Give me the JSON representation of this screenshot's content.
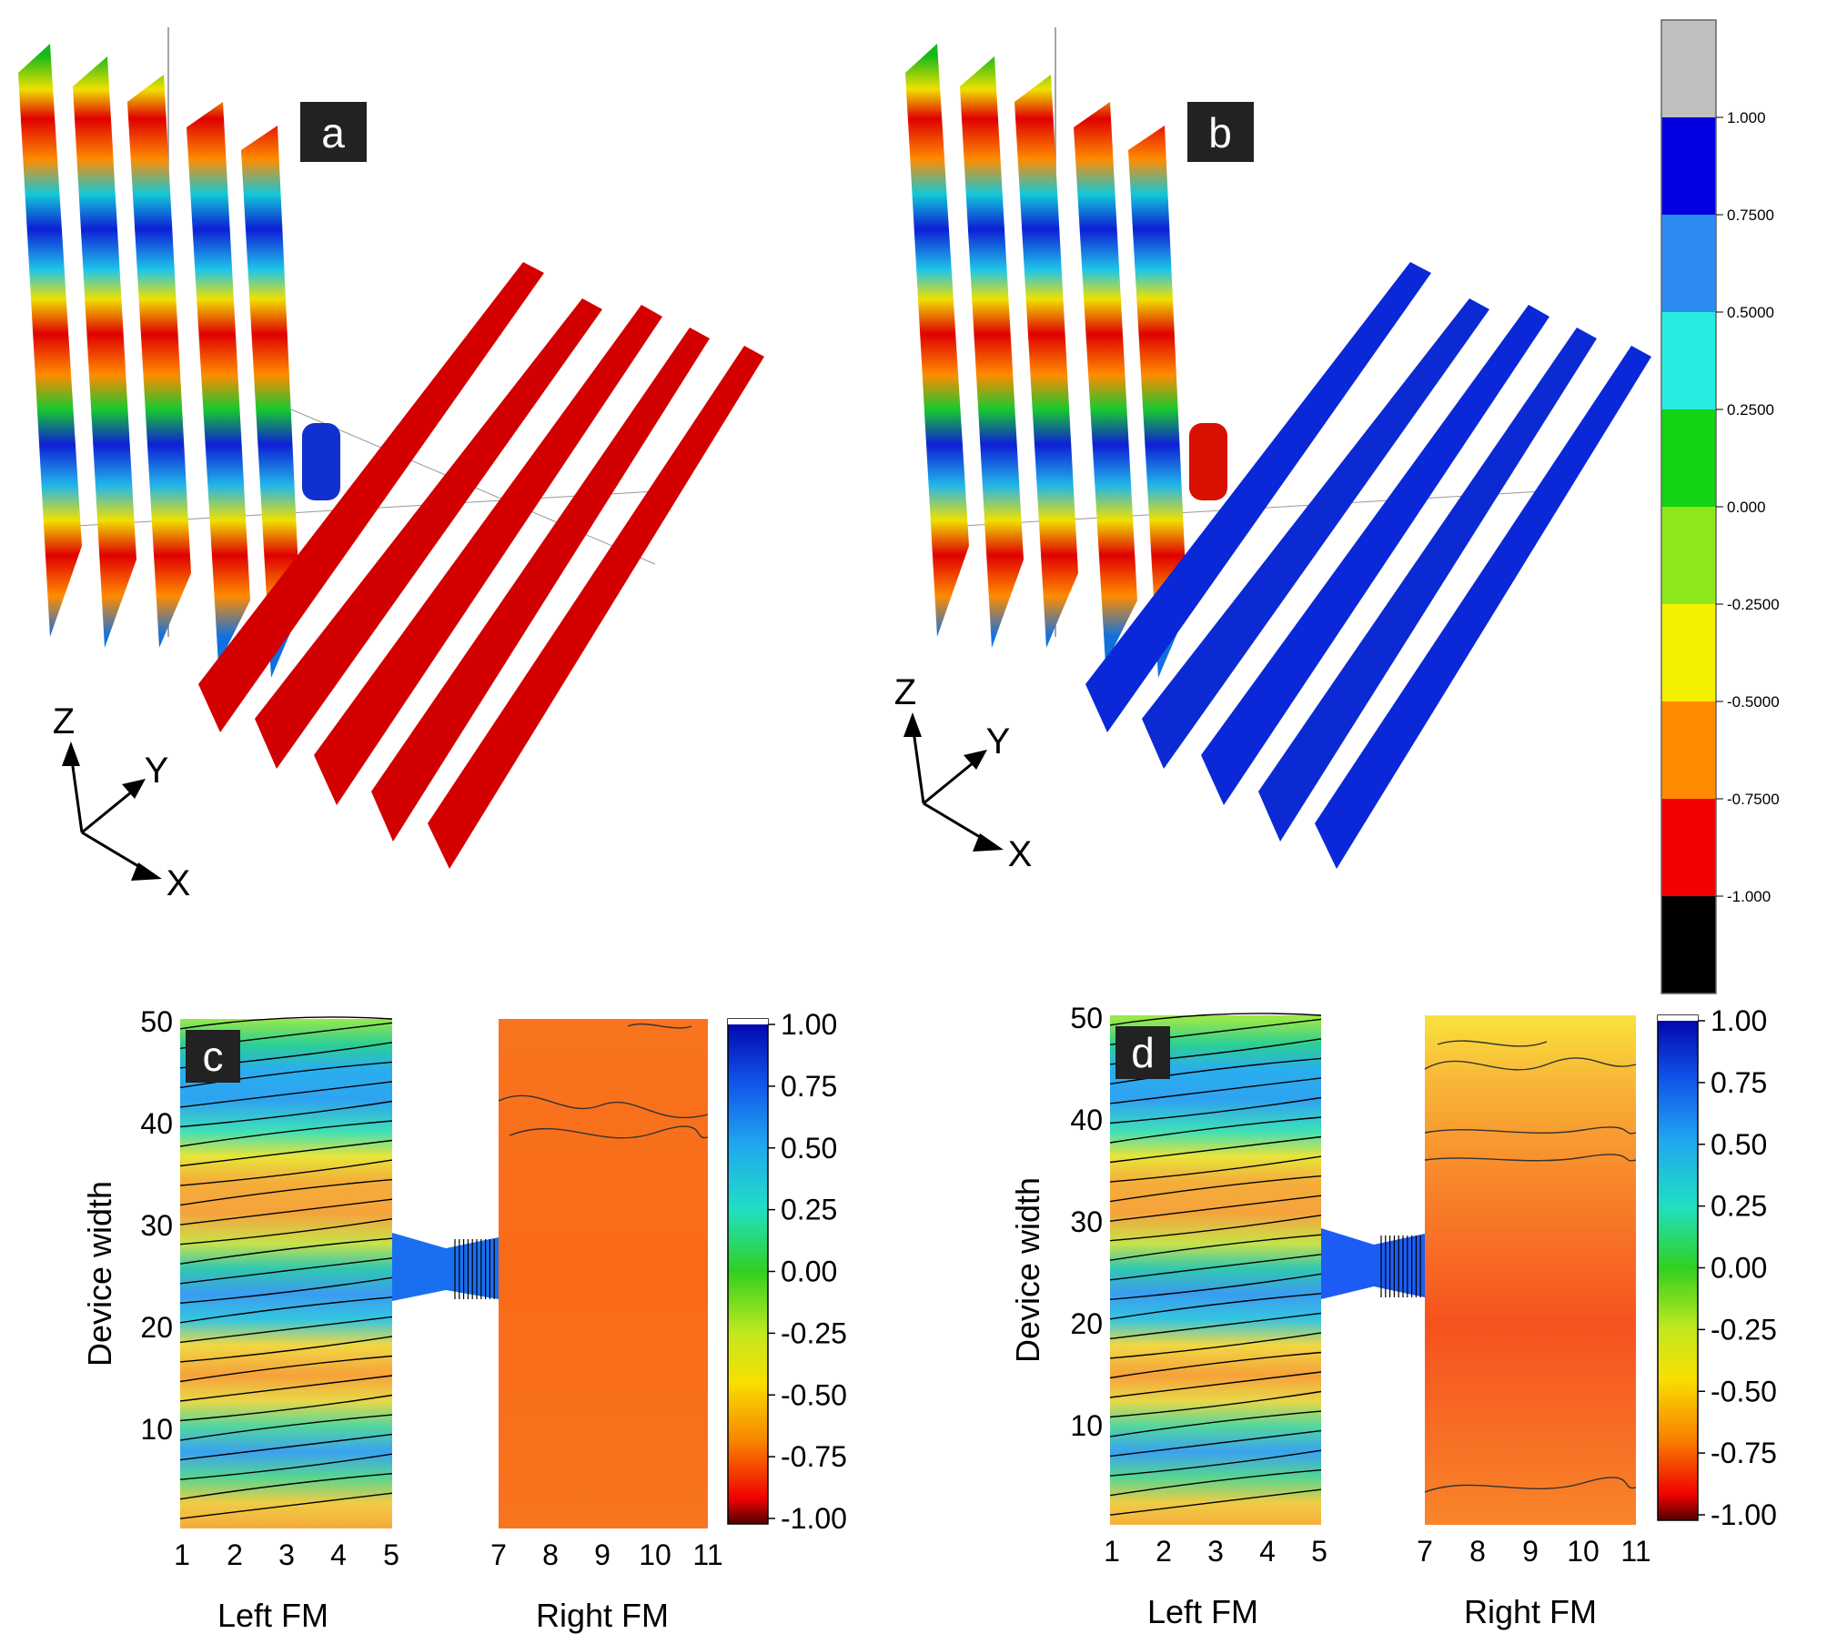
{
  "panels": {
    "a": {
      "label": "a"
    },
    "b": {
      "label": "b"
    },
    "c": {
      "label": "c"
    },
    "d": {
      "label": "d"
    }
  },
  "axes_3d": {
    "z": "Z",
    "y": "Y",
    "x": "X"
  },
  "colorbar_3d": {
    "ticks": [
      "1.000",
      "0.7500",
      "0.5000",
      "0.2500",
      "0.000",
      "-0.2500",
      "-0.5000",
      "-0.7500",
      "-1.000"
    ],
    "colors": [
      "#c0c0c0",
      "#0000e0",
      "#2c8cf2",
      "#28ece0",
      "#14d214",
      "#8ee81c",
      "#f4f000",
      "#ff8a00",
      "#f50000",
      "#000000"
    ]
  },
  "contour": {
    "ylabel": "Device width",
    "yticks": [
      "50",
      "40",
      "30",
      "20",
      "10"
    ],
    "left_xticks": [
      "1",
      "2",
      "3",
      "4",
      "5"
    ],
    "right_xticks": [
      "7",
      "8",
      "9",
      "10",
      "11"
    ],
    "left_label": "Left FM",
    "right_label": "Right FM",
    "cbar_ticks": [
      "1.00",
      "0.75",
      "0.50",
      "0.25",
      "0.00",
      "-0.25",
      "-0.50",
      "-0.75",
      "-1.00"
    ]
  }
}
